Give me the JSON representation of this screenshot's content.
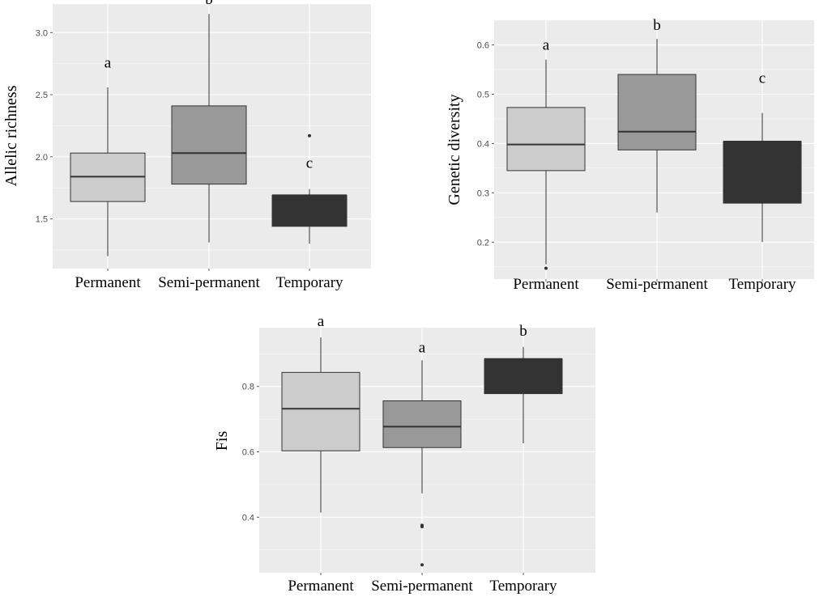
{
  "chart_data": [
    {
      "type": "box",
      "ylabel": "Allelic richness",
      "xlabel": "",
      "categories": [
        "Permanent",
        "Semi-permanent",
        "Temporary"
      ],
      "yticks": [
        1.5,
        2.0,
        2.5,
        3.0
      ],
      "ytick_labels": [
        "1.5",
        "2.0",
        "2.5",
        "3.0"
      ],
      "ylim": [
        1.1,
        3.23
      ],
      "grid": true,
      "fill_colors": [
        "#cccccc",
        "#999999",
        "#333333"
      ],
      "boxes": [
        {
          "q1": 1.64,
          "median": 1.84,
          "q3": 2.03,
          "whisker_low": 1.2,
          "whisker_high": 2.56,
          "outliers": []
        },
        {
          "q1": 1.78,
          "median": 2.03,
          "q3": 2.41,
          "whisker_low": 1.31,
          "whisker_high": 3.15,
          "outliers": []
        },
        {
          "q1": 1.44,
          "median": 1.69,
          "q3": 1.69,
          "whisker_low": 1.3,
          "whisker_high": 1.74,
          "outliers": [
            2.17
          ]
        }
      ],
      "letters": [
        {
          "text": "a",
          "y": 2.72
        },
        {
          "text": "b",
          "y": 3.23
        },
        {
          "text": "c",
          "y": 1.91
        }
      ]
    },
    {
      "type": "box",
      "ylabel": "Genetic diversity",
      "xlabel": "",
      "categories": [
        "Permanent",
        "Semi-permanent",
        "Temporary"
      ],
      "yticks": [
        0.2,
        0.3,
        0.4,
        0.5,
        0.6
      ],
      "ytick_labels": [
        "0.2",
        "0.3",
        "0.4",
        "0.5",
        "0.6"
      ],
      "ylim": [
        0.125,
        0.65
      ],
      "grid": true,
      "fill_colors": [
        "#cccccc",
        "#999999",
        "#333333"
      ],
      "boxes": [
        {
          "q1": 0.345,
          "median": 0.398,
          "q3": 0.473,
          "whisker_low": 0.155,
          "whisker_high": 0.57,
          "outliers": [
            0.147
          ]
        },
        {
          "q1": 0.387,
          "median": 0.424,
          "q3": 0.54,
          "whisker_low": 0.26,
          "whisker_high": 0.612,
          "outliers": []
        },
        {
          "q1": 0.279,
          "median": 0.404,
          "q3": 0.404,
          "whisker_low": 0.2,
          "whisker_high": 0.462,
          "outliers": []
        }
      ],
      "letters": [
        {
          "text": "a",
          "y": 0.59
        },
        {
          "text": "b",
          "y": 0.63
        },
        {
          "text": "c",
          "y": 0.523
        }
      ]
    },
    {
      "type": "box",
      "ylabel": "Fis",
      "xlabel": "",
      "categories": [
        "Permanent",
        "Semi-permanent",
        "Temporary"
      ],
      "yticks": [
        0.4,
        0.6,
        0.8
      ],
      "ytick_labels": [
        "0.4",
        "0.6",
        "0.8"
      ],
      "ylim": [
        0.23,
        0.98
      ],
      "grid": true,
      "fill_colors": [
        "#cccccc",
        "#999999",
        "#333333"
      ],
      "boxes": [
        {
          "q1": 0.603,
          "median": 0.732,
          "q3": 0.843,
          "whisker_low": 0.414,
          "whisker_high": 0.95,
          "outliers": []
        },
        {
          "q1": 0.613,
          "median": 0.677,
          "q3": 0.756,
          "whisker_low": 0.473,
          "whisker_high": 0.88,
          "outliers": [
            0.375,
            0.371,
            0.254
          ]
        },
        {
          "q1": 0.778,
          "median": 0.884,
          "q3": 0.884,
          "whisker_low": 0.626,
          "whisker_high": 0.921,
          "outliers": []
        }
      ],
      "letters": [
        {
          "text": "a",
          "y": 0.985
        },
        {
          "text": "a",
          "y": 0.905
        },
        {
          "text": "b",
          "y": 0.955
        }
      ]
    }
  ]
}
